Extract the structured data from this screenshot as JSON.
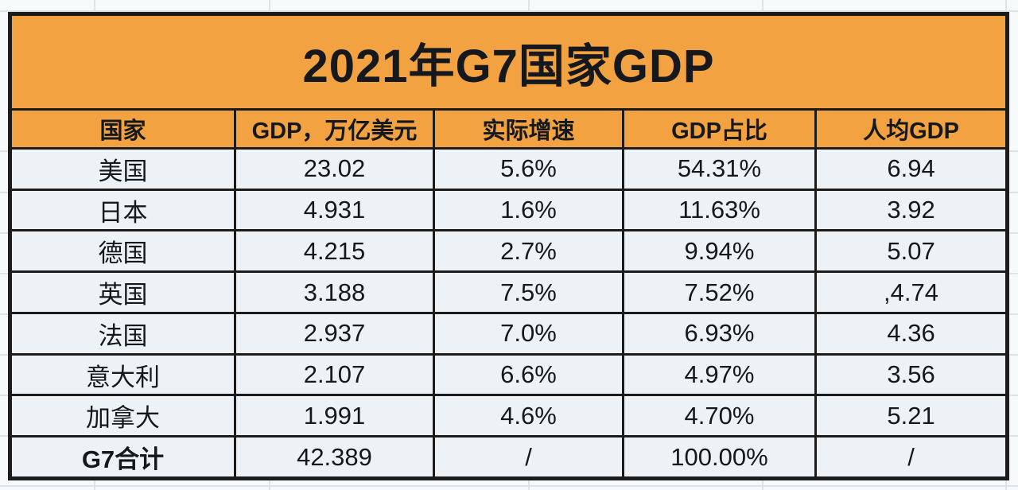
{
  "title": "2021年G7国家GDP",
  "chart_data": {
    "type": "table",
    "title": "2021年G7国家GDP",
    "columns": [
      "国家",
      "GDP，万亿美元",
      "实际增速",
      "GDP占比",
      "人均GDP"
    ],
    "rows": [
      [
        "美国",
        "23.02",
        "5.6%",
        "54.31%",
        "6.94"
      ],
      [
        "日本",
        "4.931",
        "1.6%",
        "11.63%",
        "3.92"
      ],
      [
        "德国",
        "4.215",
        "2.7%",
        "9.94%",
        "5.07"
      ],
      [
        "英国",
        "3.188",
        "7.5%",
        "7.52%",
        ",4.74"
      ],
      [
        "法国",
        "2.937",
        "7.0%",
        "6.93%",
        "4.36"
      ],
      [
        "意大利",
        "2.107",
        "6.6%",
        "4.97%",
        "3.56"
      ],
      [
        "加拿大",
        "1.991",
        "4.6%",
        "4.70%",
        "5.21"
      ],
      [
        "G7合计",
        "42.389",
        "/",
        "100.00%",
        "/"
      ]
    ]
  },
  "colors": {
    "accent_orange": "#f2a240",
    "cell_background": "#edf2f7",
    "table_border": "#1c1c1c",
    "sheet_background": "#f7fafb",
    "sheet_gridline": "#dde3e7"
  }
}
